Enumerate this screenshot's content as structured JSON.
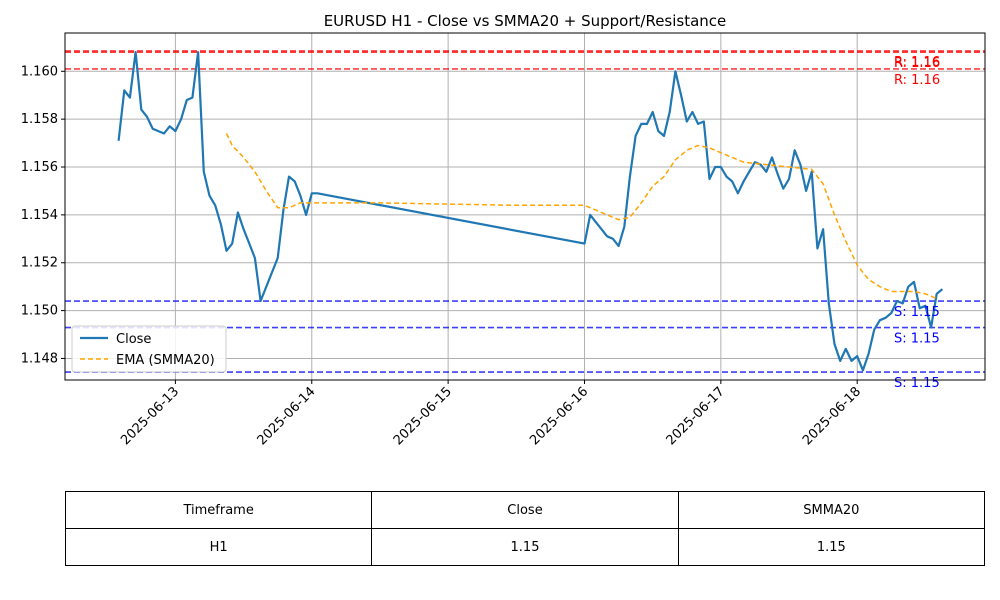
{
  "chart_data": {
    "type": "line",
    "title": "EURUSD H1 - Close vs SMMA20 + Support/Resistance",
    "xlabel": "",
    "ylabel": "",
    "x_ticks": [
      "2025-06-13",
      "2025-06-14",
      "2025-06-15",
      "2025-06-16",
      "2025-06-17",
      "2025-06-18"
    ],
    "y_ticks": [
      "1.148",
      "1.150",
      "1.152",
      "1.154",
      "1.156",
      "1.158",
      "1.160"
    ],
    "ylim": [
      1.1471,
      1.1616
    ],
    "grid": true,
    "legend_position": "lower-left",
    "series": [
      {
        "name": "Close",
        "style": "solid",
        "color": "#1f77b4",
        "points": [
          [
            "2025-06-12 14:00",
            1.1571
          ],
          [
            "2025-06-12 15:00",
            1.1592
          ],
          [
            "2025-06-12 16:00",
            1.1589
          ],
          [
            "2025-06-12 17:00",
            1.1608
          ],
          [
            "2025-06-12 18:00",
            1.1584
          ],
          [
            "2025-06-12 19:00",
            1.1581
          ],
          [
            "2025-06-12 20:00",
            1.1576
          ],
          [
            "2025-06-12 22:00",
            1.1574
          ],
          [
            "2025-06-12 23:00",
            1.1577
          ],
          [
            "2025-06-13 00:00",
            1.1575
          ],
          [
            "2025-06-13 01:00",
            1.158
          ],
          [
            "2025-06-13 02:00",
            1.1588
          ],
          [
            "2025-06-13 03:00",
            1.1589
          ],
          [
            "2025-06-13 04:00",
            1.1608
          ],
          [
            "2025-06-13 05:00",
            1.1558
          ],
          [
            "2025-06-13 06:00",
            1.1548
          ],
          [
            "2025-06-13 07:00",
            1.1544
          ],
          [
            "2025-06-13 08:00",
            1.1536
          ],
          [
            "2025-06-13 09:00",
            1.1525
          ],
          [
            "2025-06-13 10:00",
            1.1528
          ],
          [
            "2025-06-13 11:00",
            1.1541
          ],
          [
            "2025-06-13 12:00",
            1.1534
          ],
          [
            "2025-06-13 13:00",
            1.1528
          ],
          [
            "2025-06-13 14:00",
            1.1522
          ],
          [
            "2025-06-13 15:00",
            1.1504
          ],
          [
            "2025-06-13 18:00",
            1.1522
          ],
          [
            "2025-06-13 19:00",
            1.1542
          ],
          [
            "2025-06-13 20:00",
            1.1556
          ],
          [
            "2025-06-13 21:00",
            1.1554
          ],
          [
            "2025-06-13 22:00",
            1.1548
          ],
          [
            "2025-06-13 23:00",
            1.154
          ],
          [
            "2025-06-14 00:00",
            1.1549
          ],
          [
            "2025-06-14 01:00",
            1.1549
          ],
          [
            "2025-06-16 00:00",
            1.1528
          ],
          [
            "2025-06-16 01:00",
            1.154
          ],
          [
            "2025-06-16 02:00",
            1.1537
          ],
          [
            "2025-06-16 03:00",
            1.1534
          ],
          [
            "2025-06-16 04:00",
            1.1531
          ],
          [
            "2025-06-16 05:00",
            1.153
          ],
          [
            "2025-06-16 06:00",
            1.1527
          ],
          [
            "2025-06-16 07:00",
            1.1535
          ],
          [
            "2025-06-16 08:00",
            1.1556
          ],
          [
            "2025-06-16 09:00",
            1.1573
          ],
          [
            "2025-06-16 10:00",
            1.1578
          ],
          [
            "2025-06-16 11:00",
            1.1578
          ],
          [
            "2025-06-16 12:00",
            1.1583
          ],
          [
            "2025-06-16 13:00",
            1.1575
          ],
          [
            "2025-06-16 14:00",
            1.1573
          ],
          [
            "2025-06-16 15:00",
            1.1583
          ],
          [
            "2025-06-16 16:00",
            1.16
          ],
          [
            "2025-06-16 17:00",
            1.159
          ],
          [
            "2025-06-16 18:00",
            1.1579
          ],
          [
            "2025-06-16 19:00",
            1.1583
          ],
          [
            "2025-06-16 20:00",
            1.1578
          ],
          [
            "2025-06-16 21:00",
            1.1579
          ],
          [
            "2025-06-16 22:00",
            1.1555
          ],
          [
            "2025-06-16 23:00",
            1.156
          ],
          [
            "2025-06-17 00:00",
            1.156
          ],
          [
            "2025-06-17 01:00",
            1.1556
          ],
          [
            "2025-06-17 02:00",
            1.1554
          ],
          [
            "2025-06-17 03:00",
            1.1549
          ],
          [
            "2025-06-17 04:00",
            1.1554
          ],
          [
            "2025-06-17 05:00",
            1.1558
          ],
          [
            "2025-06-17 06:00",
            1.1562
          ],
          [
            "2025-06-17 07:00",
            1.1561
          ],
          [
            "2025-06-17 08:00",
            1.1558
          ],
          [
            "2025-06-17 09:00",
            1.1564
          ],
          [
            "2025-06-17 10:00",
            1.1557
          ],
          [
            "2025-06-17 11:00",
            1.1551
          ],
          [
            "2025-06-17 12:00",
            1.1555
          ],
          [
            "2025-06-17 13:00",
            1.1567
          ],
          [
            "2025-06-17 14:00",
            1.1561
          ],
          [
            "2025-06-17 15:00",
            1.155
          ],
          [
            "2025-06-17 16:00",
            1.1558
          ],
          [
            "2025-06-17 17:00",
            1.1526
          ],
          [
            "2025-06-17 18:00",
            1.1534
          ],
          [
            "2025-06-17 19:00",
            1.1503
          ],
          [
            "2025-06-17 20:00",
            1.1486
          ],
          [
            "2025-06-17 21:00",
            1.1479
          ],
          [
            "2025-06-17 22:00",
            1.1484
          ],
          [
            "2025-06-17 23:00",
            1.1479
          ],
          [
            "2025-06-18 00:00",
            1.1481
          ],
          [
            "2025-06-18 01:00",
            1.1475
          ],
          [
            "2025-06-18 02:00",
            1.1482
          ],
          [
            "2025-06-18 03:00",
            1.1492
          ],
          [
            "2025-06-18 04:00",
            1.1496
          ],
          [
            "2025-06-18 05:00",
            1.1497
          ],
          [
            "2025-06-18 06:00",
            1.1499
          ],
          [
            "2025-06-18 07:00",
            1.1504
          ],
          [
            "2025-06-18 08:00",
            1.1503
          ],
          [
            "2025-06-18 09:00",
            1.151
          ],
          [
            "2025-06-18 10:00",
            1.1512
          ],
          [
            "2025-06-18 11:00",
            1.1501
          ],
          [
            "2025-06-18 12:00",
            1.1502
          ],
          [
            "2025-06-18 13:00",
            1.1493
          ],
          [
            "2025-06-18 14:00",
            1.1507
          ],
          [
            "2025-06-18 15:00",
            1.1509
          ]
        ]
      },
      {
        "name": "EMA (SMMA20)",
        "style": "dashed",
        "color": "#ffa500",
        "points": [
          [
            "2025-06-13 09:00",
            1.1574
          ],
          [
            "2025-06-13 10:00",
            1.1569
          ],
          [
            "2025-06-13 12:00",
            1.1564
          ],
          [
            "2025-06-13 14:00",
            1.1558
          ],
          [
            "2025-06-13 16:00",
            1.155
          ],
          [
            "2025-06-13 18:00",
            1.1543
          ],
          [
            "2025-06-13 20:00",
            1.1543
          ],
          [
            "2025-06-13 22:00",
            1.1545
          ],
          [
            "2025-06-14 00:00",
            1.1545
          ],
          [
            "2025-06-14 12:00",
            1.1545
          ],
          [
            "2025-06-15 12:00",
            1.1544
          ],
          [
            "2025-06-16 00:00",
            1.1544
          ],
          [
            "2025-06-16 02:00",
            1.1542
          ],
          [
            "2025-06-16 04:00",
            1.154
          ],
          [
            "2025-06-16 06:00",
            1.1538
          ],
          [
            "2025-06-16 08:00",
            1.1539
          ],
          [
            "2025-06-16 10:00",
            1.1545
          ],
          [
            "2025-06-16 12:00",
            1.1552
          ],
          [
            "2025-06-16 14:00",
            1.1556
          ],
          [
            "2025-06-16 16:00",
            1.1563
          ],
          [
            "2025-06-16 18:00",
            1.1567
          ],
          [
            "2025-06-16 20:00",
            1.1569
          ],
          [
            "2025-06-16 22:00",
            1.1568
          ],
          [
            "2025-06-17 00:00",
            1.1566
          ],
          [
            "2025-06-17 04:00",
            1.1562
          ],
          [
            "2025-06-17 08:00",
            1.1561
          ],
          [
            "2025-06-17 12:00",
            1.156
          ],
          [
            "2025-06-17 16:00",
            1.1559
          ],
          [
            "2025-06-17 18:00",
            1.1553
          ],
          [
            "2025-06-17 20:00",
            1.154
          ],
          [
            "2025-06-17 22:00",
            1.1529
          ],
          [
            "2025-06-18 00:00",
            1.1519
          ],
          [
            "2025-06-18 02:00",
            1.1513
          ],
          [
            "2025-06-18 04:00",
            1.151
          ],
          [
            "2025-06-18 06:00",
            1.1508
          ],
          [
            "2025-06-18 08:00",
            1.1508
          ],
          [
            "2025-06-18 10:00",
            1.1508
          ],
          [
            "2025-06-18 12:00",
            1.1507
          ],
          [
            "2025-06-18 14:00",
            1.1505
          ]
        ]
      }
    ],
    "hlines": [
      {
        "kind": "resistance",
        "value": 1.16085,
        "color": "#ff0000",
        "style": "dashed",
        "label": "R: 1.16"
      },
      {
        "kind": "resistance",
        "value": 1.1608,
        "color": "#ff0000",
        "style": "dashed",
        "label": "R: 1.16"
      },
      {
        "kind": "resistance",
        "value": 1.1601,
        "color": "#ff0000",
        "style": "dashed",
        "label": "R: 1.16"
      },
      {
        "kind": "support",
        "value": 1.1504,
        "color": "#0000ff",
        "style": "dashed",
        "label": "S: 1.15"
      },
      {
        "kind": "support",
        "value": 1.14929,
        "color": "#0000ff",
        "style": "dashed",
        "label": "S: 1.15"
      },
      {
        "kind": "support",
        "value": 1.14743,
        "color": "#0000ff",
        "style": "dashed",
        "label": "S: 1.15"
      }
    ]
  },
  "table": {
    "headers": [
      "Timeframe",
      "Close",
      "SMMA20"
    ],
    "rows": [
      [
        "H1",
        "1.15",
        "1.15"
      ]
    ]
  }
}
